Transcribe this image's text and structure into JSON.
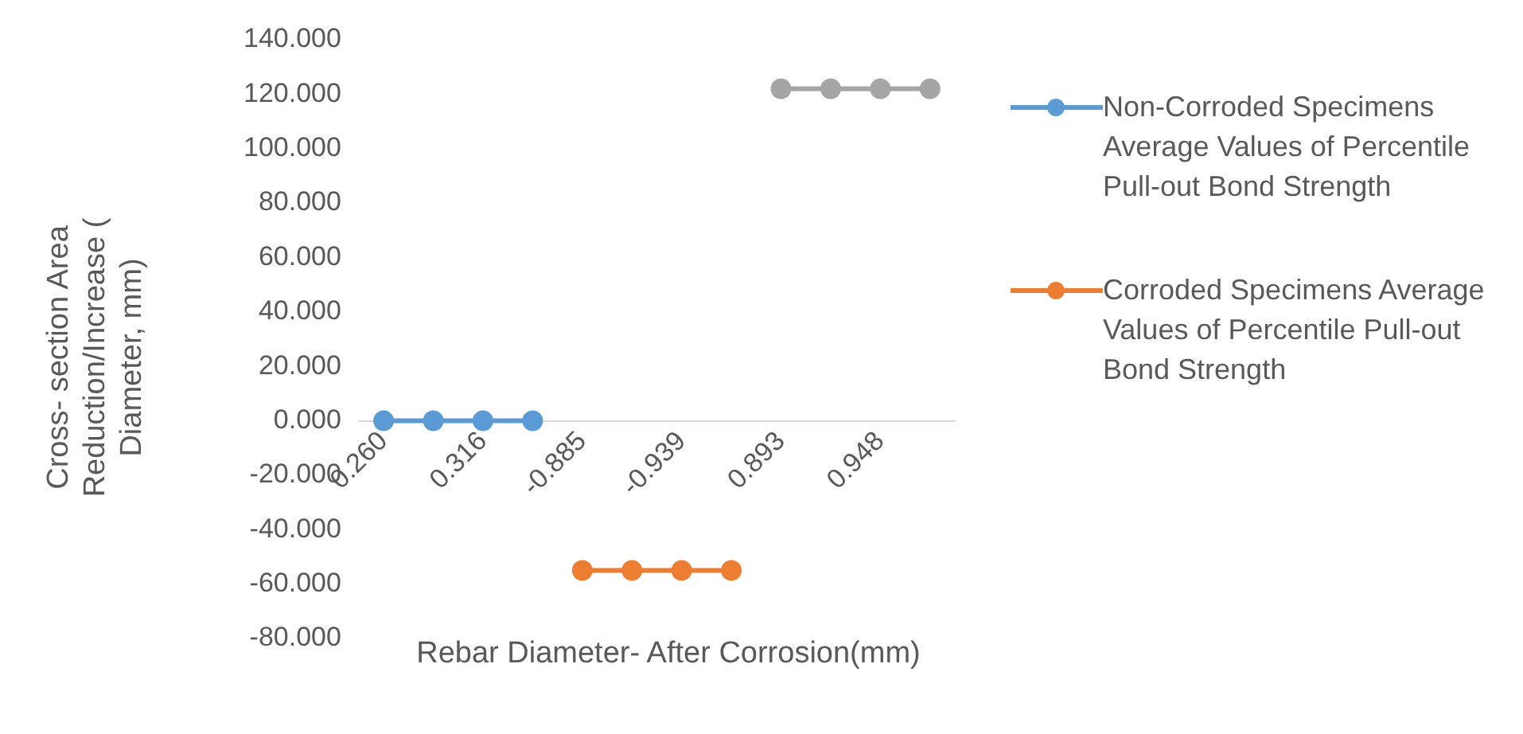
{
  "chart_data": {
    "type": "line",
    "xlabel": "Rebar Diameter- After Corrosion(mm)",
    "ylabel": "Cross- section Area Reduction/Increase ( Diameter, mm)",
    "categories": [
      "0.260",
      null,
      "0.316",
      null,
      "-0.885",
      null,
      "-0.939",
      null,
      "0.893",
      null,
      "0.948",
      null
    ],
    "series": [
      {
        "name": "Non-Corroded Specimens Average Values of Percentile Pull-out Bond Strength",
        "color": "#5b9bd5",
        "values": [
          0,
          0,
          0,
          0,
          null,
          null,
          null,
          null,
          null,
          null,
          null,
          null
        ]
      },
      {
        "name": "Corroded Specimens Average Values of Percentile Pull-out Bond Strength",
        "color": "#ed7d31",
        "values": [
          null,
          null,
          null,
          null,
          -55,
          -55,
          -55,
          -55,
          null,
          null,
          null,
          null
        ]
      },
      {
        "color": "#a5a5a5",
        "values": [
          null,
          null,
          null,
          null,
          null,
          null,
          null,
          null,
          122,
          122,
          122,
          122
        ]
      }
    ],
    "ylim": [
      -80,
      140
    ],
    "yticks": [
      {
        "value": -80,
        "label": "-80.000"
      },
      {
        "value": -60,
        "label": "-60.000"
      },
      {
        "value": -40,
        "label": "-40.000"
      },
      {
        "value": -20,
        "label": "-20.000"
      },
      {
        "value": 0,
        "label": "0.000"
      },
      {
        "value": 20,
        "label": "20.000"
      },
      {
        "value": 40,
        "label": "40.000"
      },
      {
        "value": 60,
        "label": "60.000"
      },
      {
        "value": 80,
        "label": "80.000"
      },
      {
        "value": 100,
        "label": "100.000"
      },
      {
        "value": 120,
        "label": "120.000"
      },
      {
        "value": 140,
        "label": "140.000"
      }
    ],
    "legend": "right",
    "marker": "circle",
    "grid": false
  }
}
